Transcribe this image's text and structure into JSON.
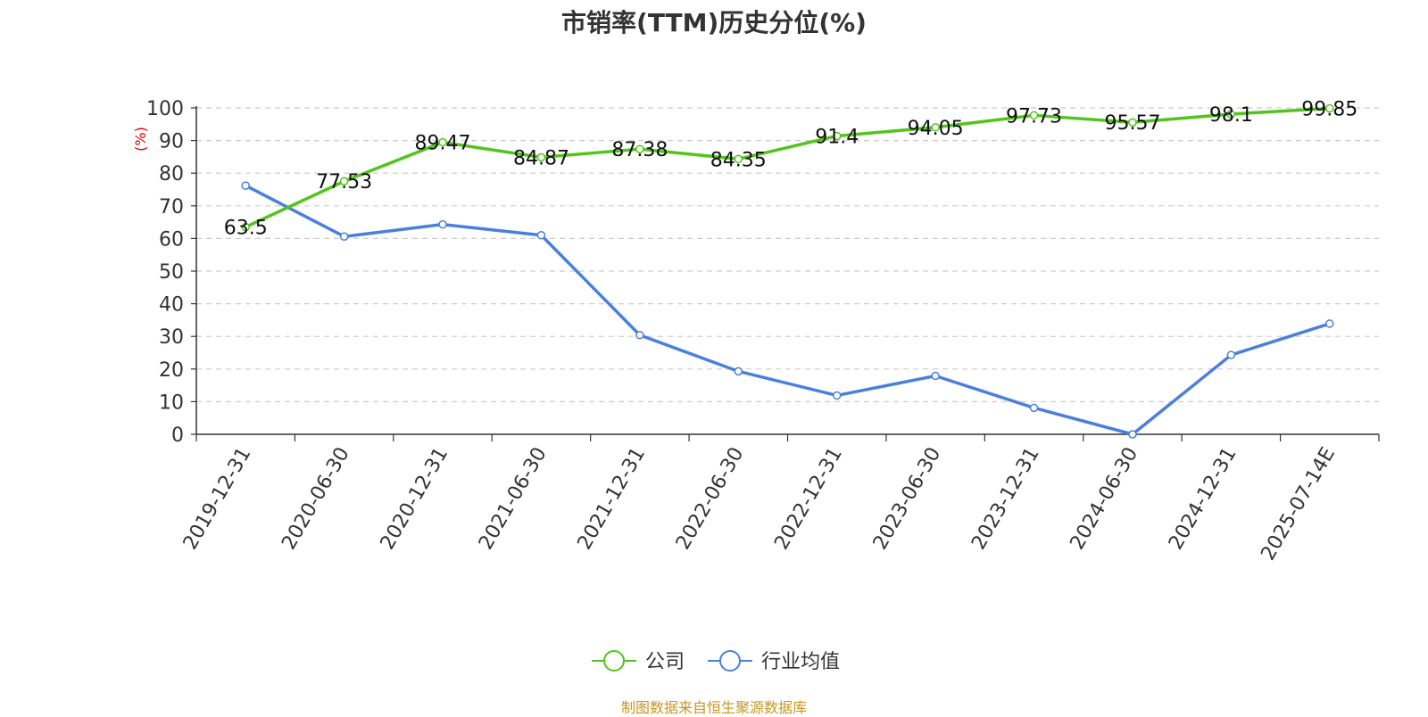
{
  "chart_data": {
    "type": "line",
    "title": "市销率(TTM)历史分位(%)",
    "ylabel": "(%)",
    "xlabel": "",
    "ylim": [
      0,
      100
    ],
    "yticks": [
      0,
      10,
      20,
      30,
      40,
      50,
      60,
      70,
      80,
      90,
      100
    ],
    "grid": true,
    "legend_position": "bottom-center",
    "categories": [
      "2019-12-31",
      "2020-06-30",
      "2020-12-31",
      "2021-06-30",
      "2021-12-31",
      "2022-06-30",
      "2022-12-31",
      "2023-06-30",
      "2023-12-31",
      "2024-06-30",
      "2024-12-31",
      "2025-07-14E"
    ],
    "series": [
      {
        "name": "公司",
        "color": "#52c41a",
        "show_labels": true,
        "values": [
          63.5,
          77.53,
          89.47,
          84.87,
          87.38,
          84.35,
          91.4,
          94.05,
          97.73,
          95.57,
          98.1,
          99.85
        ]
      },
      {
        "name": "行业均值",
        "color": "#4a80dc",
        "show_labels": false,
        "values": [
          76.2,
          60.6,
          64.3,
          61.0,
          30.4,
          19.3,
          11.9,
          17.9,
          8.1,
          0.0,
          24.3,
          33.9
        ]
      }
    ]
  },
  "source_note": "制图数据来自恒生聚源数据库"
}
